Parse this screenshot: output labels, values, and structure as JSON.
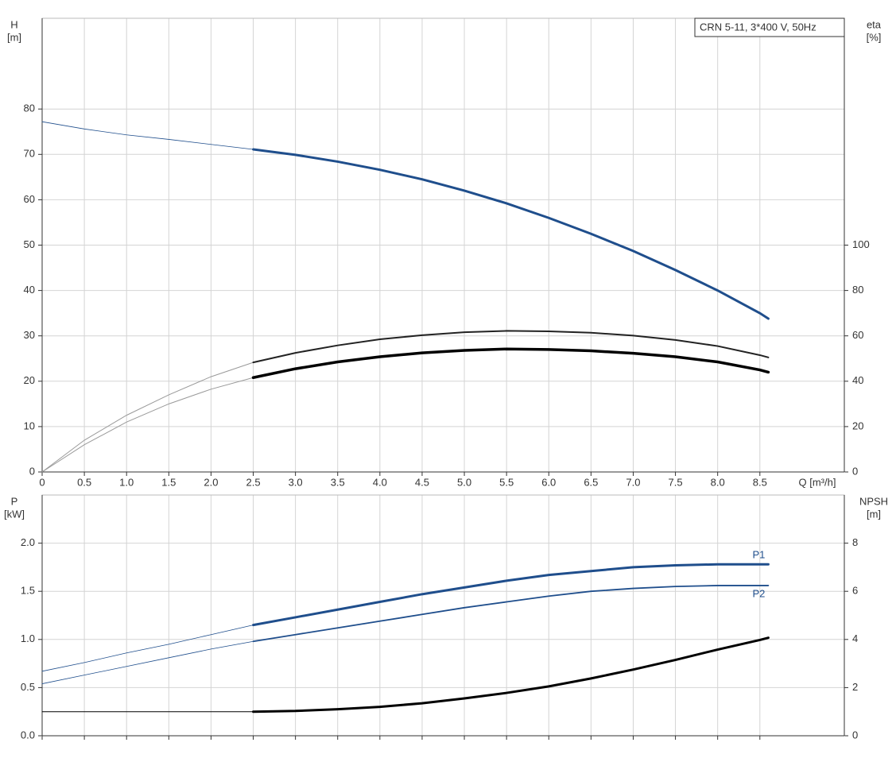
{
  "chart_data": [
    {
      "type": "line",
      "title": "CRN 5-11, 3*400 V, 50Hz",
      "xlabel": "Q [m³/h]",
      "ylabel": [
        "H",
        "[m]"
      ],
      "y2label": [
        "eta",
        "[%]"
      ],
      "xlim": [
        0,
        9.5
      ],
      "xticks": [
        0,
        0.5,
        {
          "value": 1,
          "label": "1.0"
        },
        1.5,
        {
          "value": 2,
          "label": "2.0"
        },
        2.5,
        {
          "value": 3,
          "label": "3.0"
        },
        3.5,
        {
          "value": 4,
          "label": "4.0"
        },
        4.5,
        {
          "value": 5,
          "label": "5.0"
        },
        5.5,
        {
          "value": 6,
          "label": "6.0"
        },
        6.5,
        {
          "value": 7,
          "label": "7.0"
        },
        7.5,
        {
          "value": 8,
          "label": "8.0"
        },
        8.5
      ],
      "ylim": [
        0,
        100
      ],
      "yticks": [
        0,
        10,
        20,
        30,
        40,
        50,
        60,
        70,
        80
      ],
      "y2lim": [
        0,
        200
      ],
      "y2ticks": [
        0,
        20,
        40,
        60,
        80,
        100
      ],
      "grid": true,
      "x": [
        0,
        0.5,
        1,
        1.5,
        2,
        2.5,
        3,
        3.5,
        4,
        4.5,
        5,
        5.5,
        6,
        6.5,
        7,
        7.5,
        8,
        8.5,
        8.6
      ],
      "series": [
        {
          "color": "#1f4e8c",
          "width": 0.8,
          "values": [
            77.2,
            75.6,
            74.3,
            73.3,
            72.2,
            71.1,
            null,
            null,
            null,
            null,
            null,
            null,
            null,
            null,
            null,
            null,
            null,
            null,
            null
          ]
        },
        {
          "color": "#1f4e8c",
          "width": 3,
          "values": [
            null,
            null,
            null,
            null,
            null,
            71.1,
            69.9,
            68.4,
            66.6,
            64.5,
            62,
            59.2,
            56,
            52.5,
            48.7,
            44.5,
            40,
            35,
            33.8
          ]
        },
        {
          "color": "#999999",
          "width": 1,
          "axis": "y2",
          "values": [
            0,
            14,
            25,
            34,
            42,
            48.3,
            null,
            null,
            null,
            null,
            null,
            null,
            null,
            null,
            null,
            null,
            null,
            null,
            null
          ]
        },
        {
          "color": "#222222",
          "width": 2,
          "axis": "y2",
          "values": [
            null,
            null,
            null,
            null,
            null,
            48.3,
            52.5,
            55.8,
            58.5,
            60.3,
            61.6,
            62.2,
            62,
            61.4,
            60.1,
            58.2,
            55.5,
            51.5,
            50.5
          ]
        },
        {
          "color": "#999999",
          "width": 1,
          "axis": "y2",
          "values": [
            0,
            12,
            22,
            30,
            36.5,
            41.6,
            null,
            null,
            null,
            null,
            null,
            null,
            null,
            null,
            null,
            null,
            null,
            null,
            null
          ]
        },
        {
          "color": "#000000",
          "width": 3.5,
          "axis": "y2",
          "values": [
            null,
            null,
            null,
            null,
            null,
            41.6,
            45.5,
            48.5,
            50.8,
            52.5,
            53.6,
            54.2,
            54,
            53.4,
            52.3,
            50.8,
            48.5,
            45,
            44
          ]
        }
      ]
    },
    {
      "type": "line",
      "ylabel": [
        "P",
        "[kW]"
      ],
      "y2label": [
        "NPSH",
        "[m]"
      ],
      "xlim": [
        0,
        9.5
      ],
      "ylim": [
        0,
        2.5
      ],
      "yticks": [
        {
          "value": 0,
          "label": "0.0"
        },
        0.5,
        {
          "value": 1,
          "label": "1.0"
        },
        1.5,
        {
          "value": 2,
          "label": "2.0"
        }
      ],
      "y2lim": [
        0,
        10
      ],
      "y2ticks": [
        0,
        2,
        4,
        6,
        8
      ],
      "grid": true,
      "x": [
        0,
        0.5,
        1,
        1.5,
        2,
        2.5,
        3,
        3.5,
        4,
        4.5,
        5,
        5.5,
        6,
        6.5,
        7,
        7.5,
        8,
        8.5,
        8.6
      ],
      "series": [
        {
          "color": "#1f4e8c",
          "width": 0.8,
          "values": [
            0.67,
            0.76,
            0.86,
            0.95,
            1.05,
            1.15,
            null,
            null,
            null,
            null,
            null,
            null,
            null,
            null,
            null,
            null,
            null,
            null,
            null
          ]
        },
        {
          "name": "P1",
          "label_position": "above",
          "color": "#1f4e8c",
          "width": 3,
          "values": [
            null,
            null,
            null,
            null,
            null,
            1.15,
            1.23,
            1.31,
            1.39,
            1.47,
            1.54,
            1.61,
            1.67,
            1.71,
            1.75,
            1.77,
            1.78,
            1.78,
            1.78
          ]
        },
        {
          "color": "#1f4e8c",
          "width": 0.8,
          "values": [
            0.54,
            0.63,
            0.72,
            0.81,
            0.9,
            0.98,
            null,
            null,
            null,
            null,
            null,
            null,
            null,
            null,
            null,
            null,
            null,
            null,
            null
          ]
        },
        {
          "name": "P2",
          "label_position": "below",
          "color": "#1f4e8c",
          "width": 1.8,
          "values": [
            null,
            null,
            null,
            null,
            null,
            0.98,
            1.05,
            1.12,
            1.19,
            1.26,
            1.33,
            1.39,
            1.45,
            1.5,
            1.53,
            1.55,
            1.56,
            1.56,
            1.56
          ]
        },
        {
          "color": "#000000",
          "width": 1,
          "axis": "y2",
          "values": [
            1,
            1,
            1,
            1,
            1,
            1,
            null,
            null,
            null,
            null,
            null,
            null,
            null,
            null,
            null,
            null,
            null,
            null,
            null
          ]
        },
        {
          "color": "#000000",
          "width": 3,
          "axis": "y2",
          "values": [
            null,
            null,
            null,
            null,
            null,
            1,
            1.03,
            1.1,
            1.2,
            1.35,
            1.55,
            1.78,
            2.05,
            2.38,
            2.75,
            3.15,
            3.58,
            3.98,
            4.07
          ]
        }
      ]
    }
  ]
}
